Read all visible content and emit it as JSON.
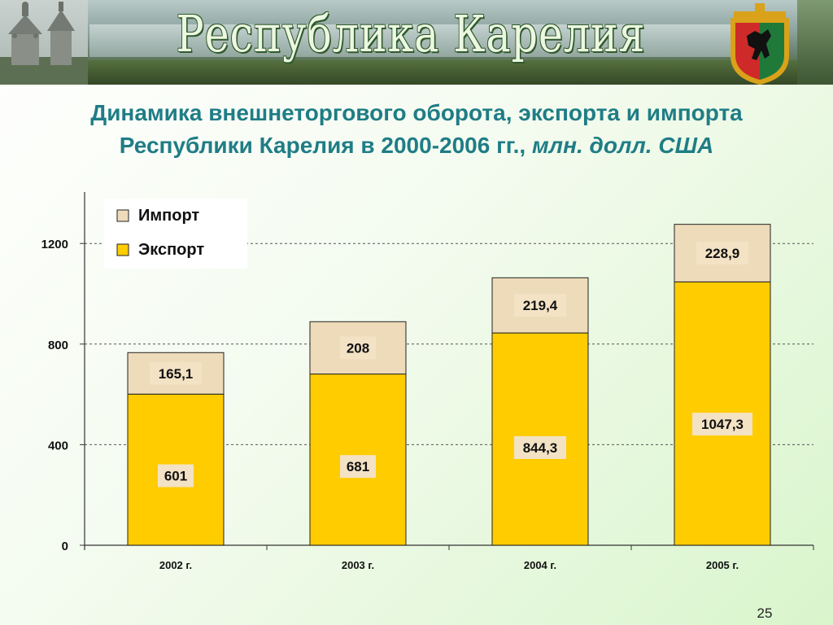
{
  "header": {
    "banner_title": "Республика Карелия",
    "coat_of_arms_icon": "karelia-coat-of-arms-icon",
    "church_icon": "wooden-church-icon"
  },
  "title": {
    "line1": "Динамика внешнеторгового оборота, экспорта и импорта",
    "line2": "Республики Карелия в 2000-2006 гг., ",
    "unit": "млн. долл. США"
  },
  "page_number": "25",
  "colors": {
    "export": "#ffcc00",
    "import": "#eedbb9",
    "title": "#1f7d86",
    "banner_text": "#ecf7e1"
  },
  "chart_data": {
    "type": "bar",
    "stacked": true,
    "categories": [
      "2002 г.",
      "2003 г.",
      "2004 г.",
      "2005 г."
    ],
    "series": [
      {
        "name": "Экспорт",
        "values": [
          601,
          681,
          844.3,
          1047.3
        ],
        "labels": [
          "601",
          "681",
          "844,3",
          "1047,3"
        ],
        "color": "#ffcc00"
      },
      {
        "name": "Импорт",
        "values": [
          165.1,
          208,
          219.4,
          228.9
        ],
        "labels": [
          "165,1",
          "208",
          "219,4",
          "228,9"
        ],
        "color": "#eedbb9"
      }
    ],
    "legend": {
      "items": [
        "Импорт",
        "Экспорт"
      ],
      "placement": "top-left"
    },
    "yticks": [
      "0",
      "400",
      "800",
      "1200"
    ],
    "ytick_values": [
      0,
      400,
      800,
      1200
    ],
    "ylim": [
      0,
      1400
    ],
    "grid": true
  }
}
